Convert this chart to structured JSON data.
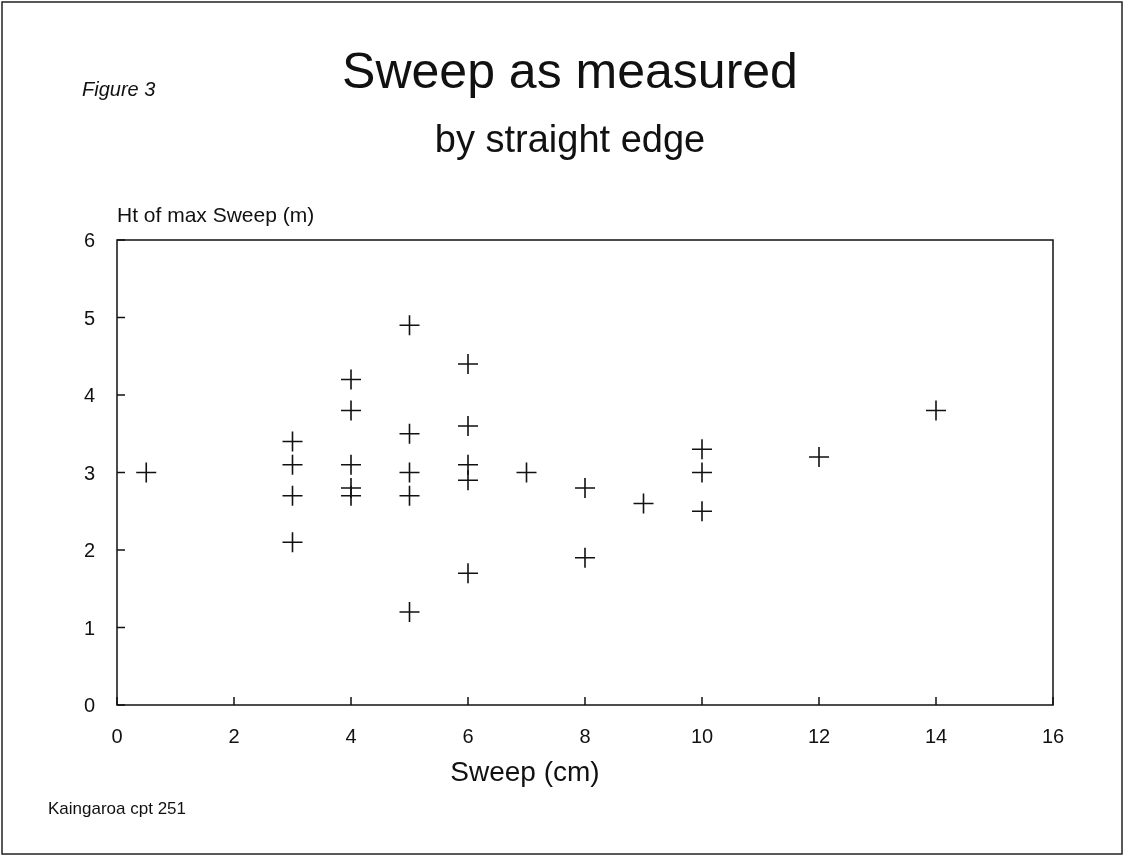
{
  "chart_data": {
    "type": "scatter",
    "title": "Sweep as measured",
    "subtitle": "by straight edge",
    "xlabel": "Sweep (cm)",
    "ylabel": "Ht of max Sweep (m)",
    "annotations": [
      "Figure 3",
      "Kaingaroa cpt 251"
    ],
    "x": [
      0.5,
      3,
      3,
      3,
      3,
      4,
      4,
      4,
      4,
      4,
      5,
      5,
      5,
      5,
      5,
      6,
      6,
      6,
      6,
      6,
      7,
      8,
      8,
      9,
      10,
      10,
      10,
      12,
      14
    ],
    "values": [
      3.0,
      3.4,
      3.1,
      2.7,
      2.1,
      4.2,
      3.8,
      3.1,
      2.8,
      2.7,
      4.9,
      3.5,
      3.0,
      2.7,
      1.2,
      4.4,
      3.6,
      3.1,
      2.9,
      1.7,
      3.0,
      2.8,
      1.9,
      2.6,
      3.3,
      3.0,
      2.5,
      3.2,
      3.8
    ],
    "color": "#111111",
    "marker": "cross",
    "xlim": [
      0,
      16
    ],
    "xticks": [
      0,
      2,
      4,
      6,
      8,
      10,
      12,
      14,
      16
    ],
    "ylim": [
      0,
      6
    ],
    "yticks": [
      0,
      1,
      2,
      3,
      4,
      5,
      6
    ]
  }
}
